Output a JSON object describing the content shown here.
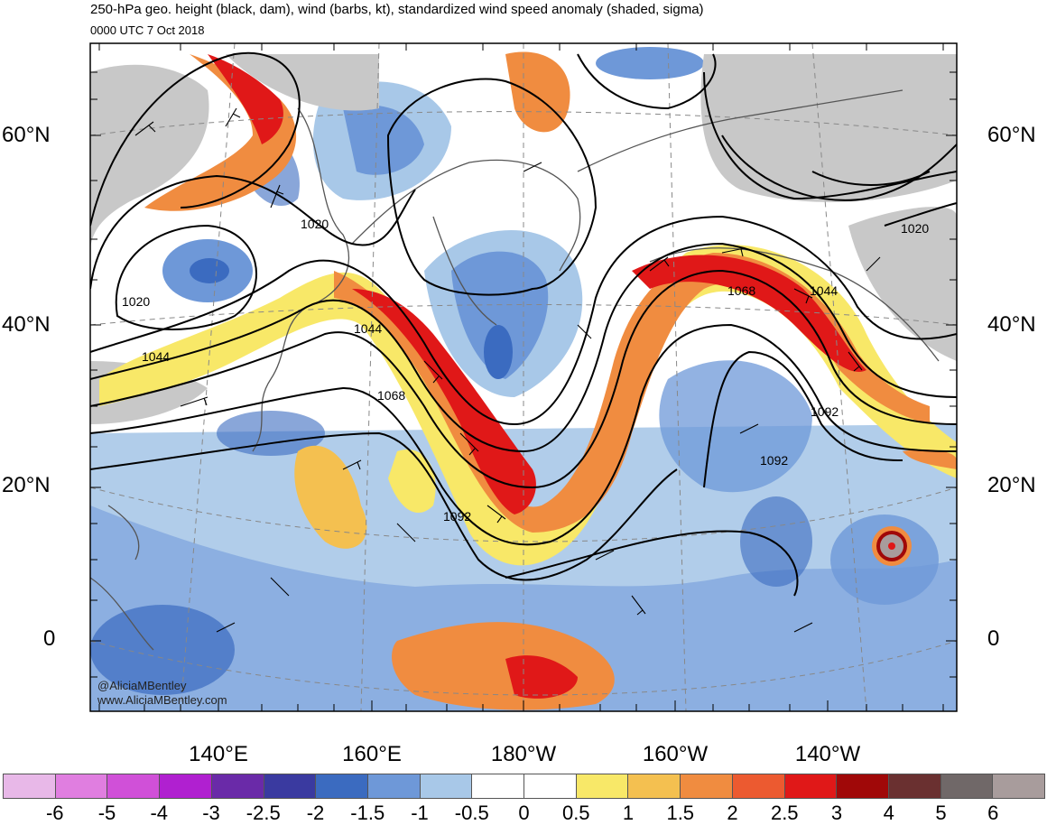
{
  "title": "250-hPa geo. height (black, dam), wind (barbs, kt), standardized wind speed anomaly (shaded, sigma)",
  "subtitle": "0000 UTC 7 Oct 2018",
  "lat_labels": [
    "60°N",
    "40°N",
    "20°N",
    "0"
  ],
  "lon_labels": [
    "140°E",
    "160°E",
    "180°W",
    "160°W",
    "140°W"
  ],
  "contour_labels": [
    "1020",
    "1020",
    "1044",
    "1044",
    "1068",
    "1068",
    "1044",
    "1092",
    "1092",
    "1092",
    "1020"
  ],
  "credits": [
    "@AliciaMBentley",
    "www.AliciaMBentley.com"
  ],
  "colorbar": {
    "labels": [
      "-6",
      "-5",
      "-4",
      "-3",
      "-2.5",
      "-2",
      "-1.5",
      "-1",
      "-0.5",
      "0",
      "0.5",
      "1",
      "1.5",
      "2",
      "2.5",
      "3",
      "4",
      "5",
      "6"
    ],
    "colors": [
      "#e8b8e8",
      "#e07ee0",
      "#d050d8",
      "#b020d0",
      "#6a2aa8",
      "#3a3aa0",
      "#3b6bc0",
      "#6e98d8",
      "#a8c8e8",
      "#ffffff",
      "#ffffff",
      "#f8e868",
      "#f4c050",
      "#f08c40",
      "#ec5a30",
      "#e01818",
      "#a00808",
      "#6a3030",
      "#706868",
      "#a89c9c"
    ]
  }
}
